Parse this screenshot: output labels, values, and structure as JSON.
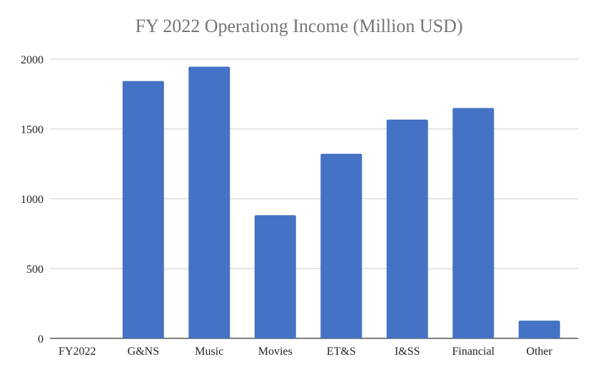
{
  "chart_data": {
    "type": "bar",
    "title": "FY 2022  Operationg Income (Million USD)",
    "xlabel": "",
    "ylabel": "",
    "categories": [
      "FY2022",
      "G&NS",
      "Music",
      "Movies",
      "ET&S",
      "I&SS",
      "Financial",
      "Other"
    ],
    "values": [
      null,
      1843,
      1946,
      882,
      1322,
      1567,
      1650,
      127
    ],
    "ylim": [
      0,
      2000
    ],
    "yticks": [
      "0",
      "500",
      "1000",
      "1500",
      "2000"
    ],
    "grid": true,
    "legend": "none",
    "bar_color": "#4472c4",
    "grid_color": "#cccccc",
    "axis_color": "#333333"
  }
}
